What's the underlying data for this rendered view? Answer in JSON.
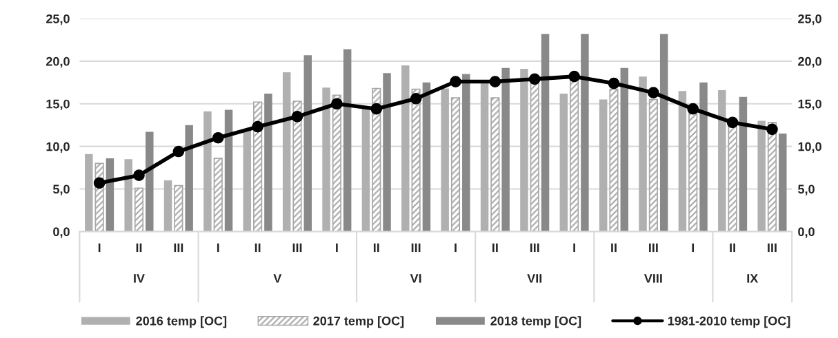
{
  "chart_data": {
    "type": "bar",
    "categories": [
      "I",
      "II",
      "III",
      "I",
      "II",
      "III",
      "I",
      "II",
      "III",
      "I",
      "II",
      "III",
      "I",
      "II",
      "III",
      "I",
      "II",
      "III"
    ],
    "series": [
      {
        "name": "2016 temp [OC]",
        "color": "#b0b0b0",
        "values": [
          9.1,
          8.5,
          6.0,
          14.1,
          12.0,
          18.7,
          16.9,
          14.6,
          19.5,
          16.8,
          17.4,
          19.1,
          16.2,
          15.5,
          18.2,
          16.5,
          16.6,
          13.0
        ]
      },
      {
        "name": "2017 temp [OC]",
        "color": "#a6a6a6",
        "values": [
          8.0,
          5.1,
          5.4,
          8.6,
          15.2,
          15.3,
          16.0,
          16.8,
          16.7,
          15.7,
          15.7,
          17.6,
          17.8,
          16.7,
          15.5,
          14.0,
          12.7,
          12.8
        ]
      },
      {
        "name": "2018 temp [OC]",
        "color": "#898989",
        "values": [
          8.6,
          11.7,
          12.5,
          14.3,
          16.2,
          20.7,
          21.4,
          18.6,
          17.5,
          18.5,
          19.2,
          23.2,
          23.2,
          19.2,
          23.2,
          17.5,
          15.8,
          11.5
        ]
      },
      {
        "name": "1981-2010 temp [OC]",
        "type": "line",
        "color": "#000000",
        "marker": "circle",
        "values": [
          5.7,
          6.6,
          9.4,
          11.0,
          12.3,
          13.5,
          15.0,
          14.4,
          15.6,
          17.6,
          17.6,
          17.9,
          18.2,
          17.4,
          16.3,
          14.4,
          12.8,
          12.0
        ]
      }
    ],
    "annotations": [
      "IV",
      "V",
      "VI",
      "VII",
      "VIII",
      "IX"
    ],
    "ylim": [
      0,
      25
    ],
    "yticks": [
      {
        "value": 0,
        "label": "0,0"
      },
      {
        "value": 5,
        "label": "5,0"
      },
      {
        "value": 10,
        "label": "10,0"
      },
      {
        "value": 15,
        "label": "15,0"
      },
      {
        "value": 20,
        "label": "20,0"
      },
      {
        "value": 25,
        "label": "25,0"
      }
    ],
    "y2lim": [
      0,
      25
    ],
    "y2ticks": [
      {
        "value": 0,
        "label": "0,0"
      },
      {
        "value": 5,
        "label": "5,0"
      },
      {
        "value": 10,
        "label": "10,0"
      },
      {
        "value": 15,
        "label": "15,0"
      },
      {
        "value": 20,
        "label": "20,0"
      },
      {
        "value": 25,
        "label": "25,0"
      }
    ],
    "grid": "y",
    "legend": "bottom"
  }
}
